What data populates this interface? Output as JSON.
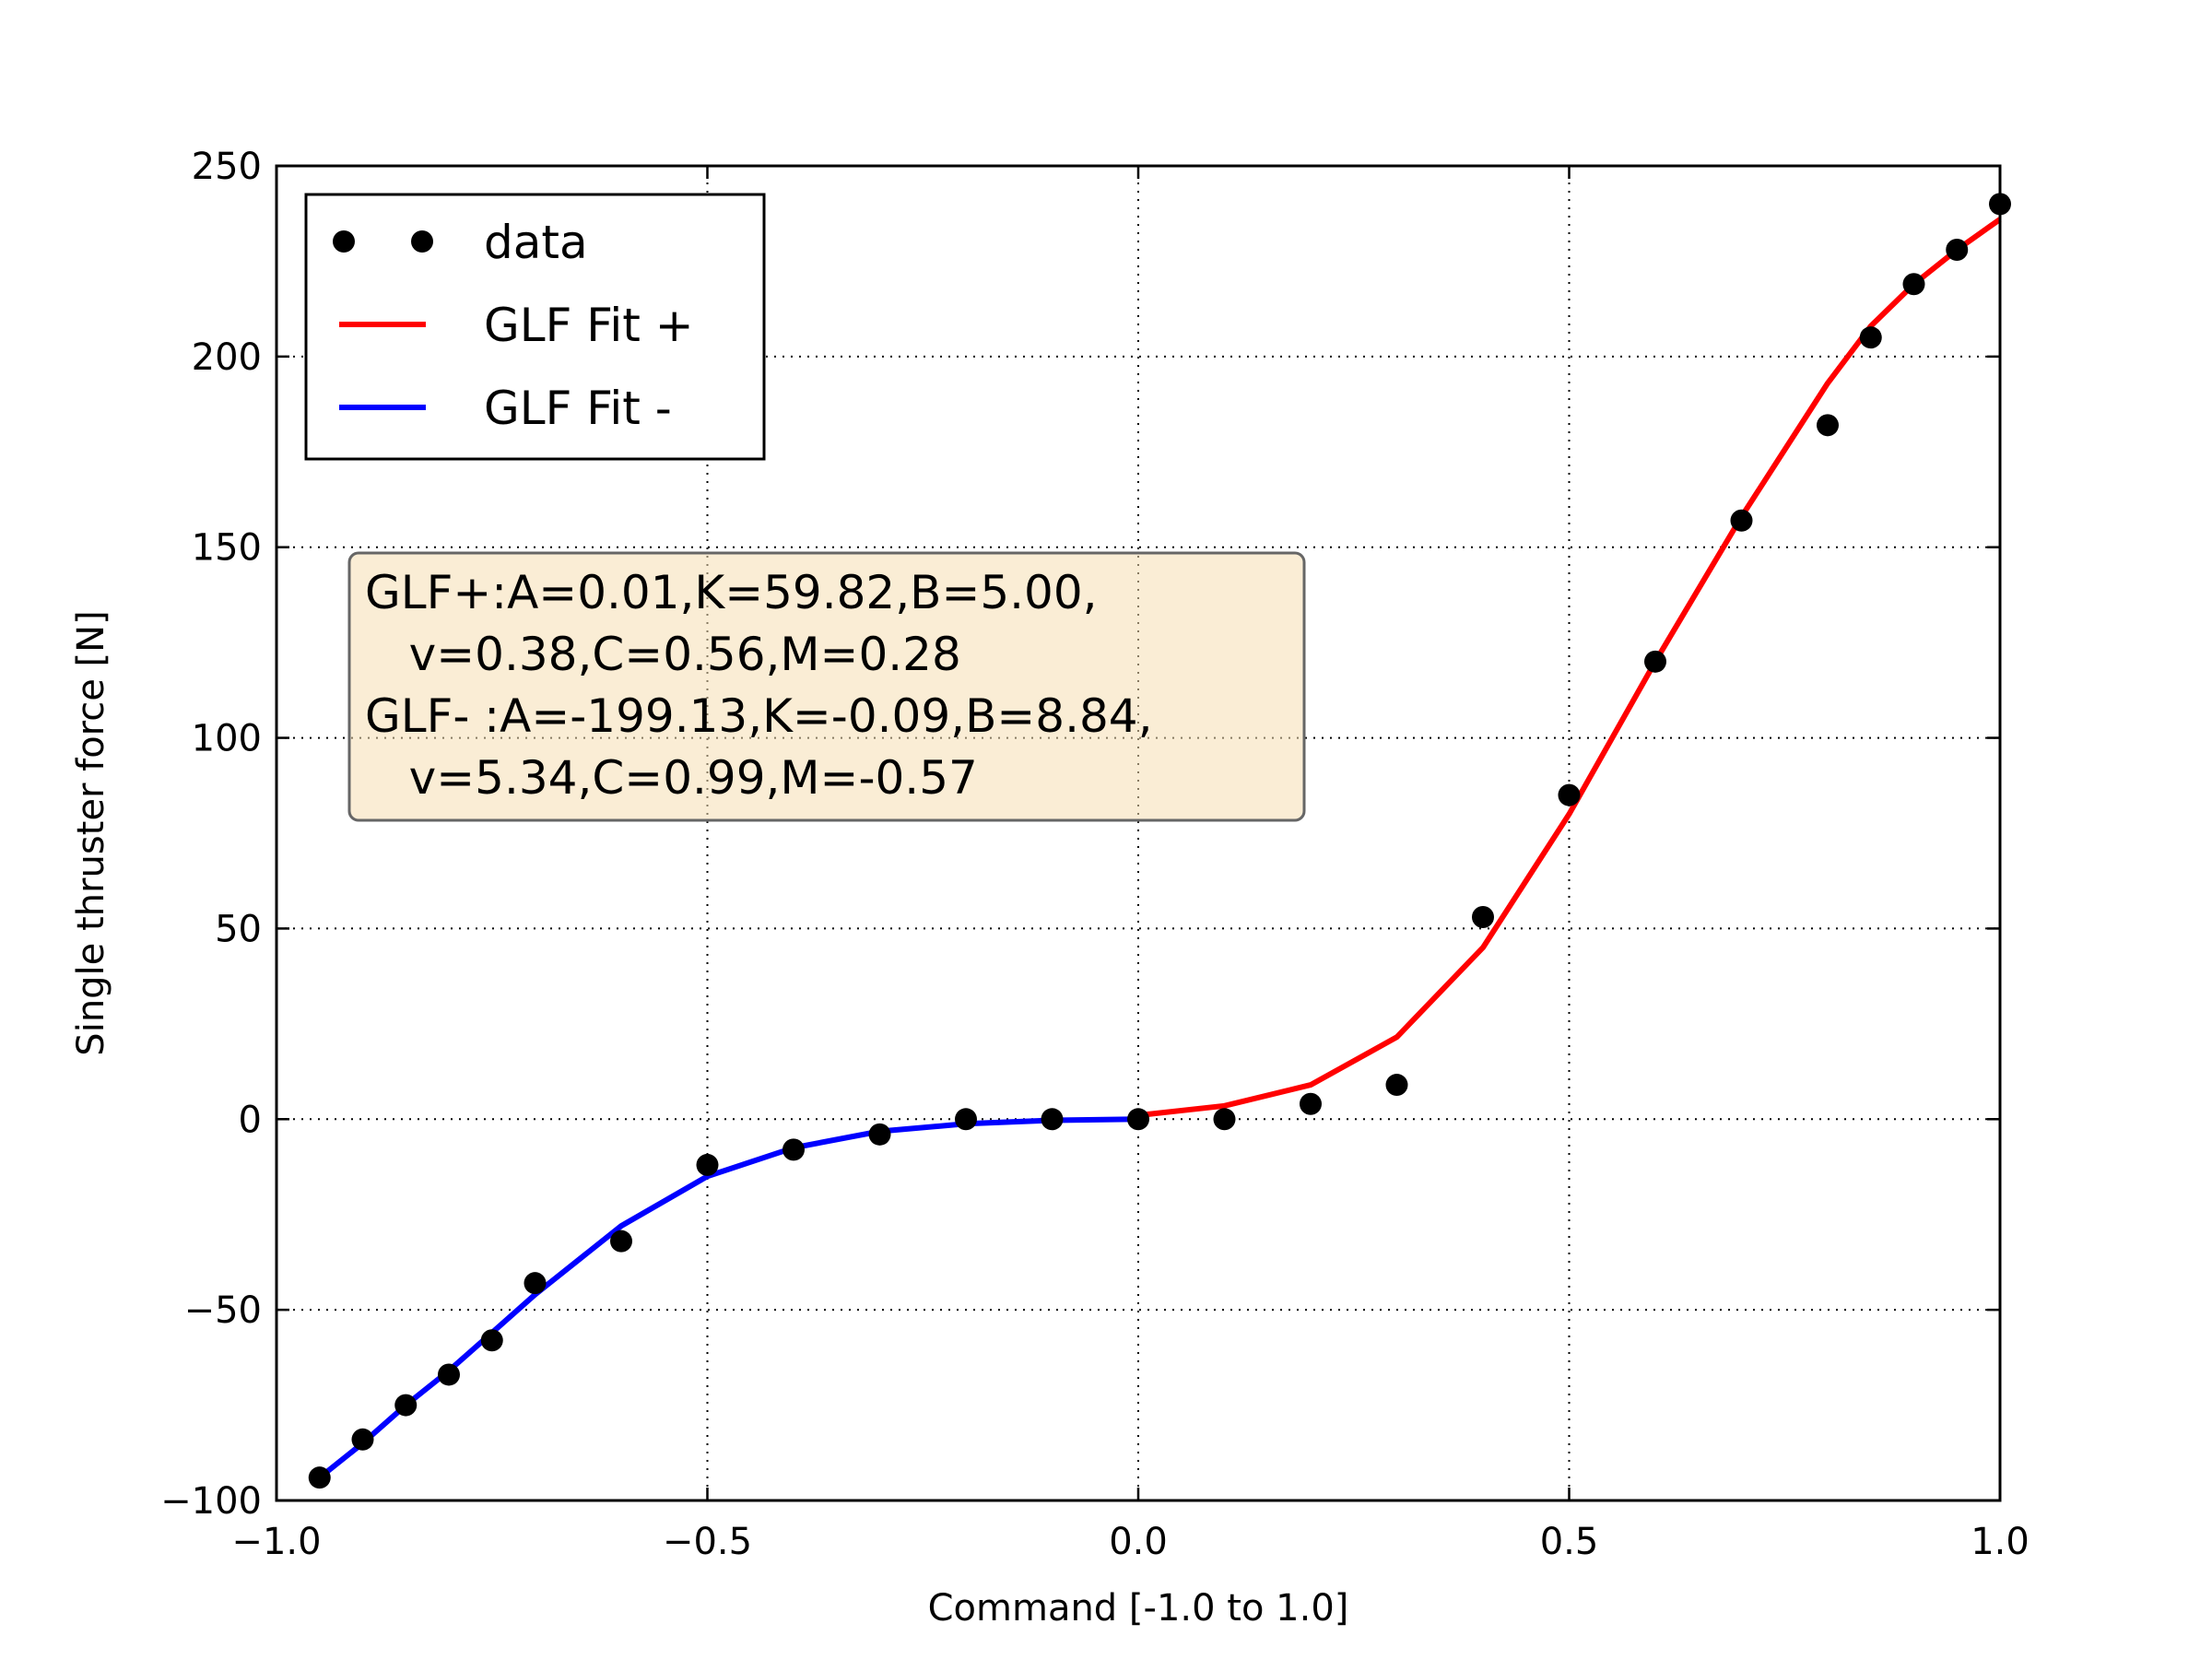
{
  "chart_data": {
    "type": "scatter",
    "title": "",
    "xlabel": "Command [-1.0 to 1.0]",
    "ylabel": "Single thruster force [N]",
    "xlim": [
      -1.0,
      1.0
    ],
    "ylim": [
      -100,
      250
    ],
    "xticks": [
      -1.0,
      -0.5,
      0.0,
      0.5,
      1.0
    ],
    "xtick_labels": [
      "−1.0",
      "−0.5",
      "0.0",
      "0.5",
      "1.0"
    ],
    "yticks": [
      -100,
      -50,
      0,
      50,
      100,
      150,
      200,
      250
    ],
    "ytick_labels": [
      "−100",
      "−50",
      "0",
      "50",
      "100",
      "150",
      "200",
      "250"
    ],
    "grid": true,
    "legend_position": "top-left",
    "series": [
      {
        "name": "data",
        "style": "markers",
        "color": "#000000",
        "x": [
          -0.95,
          -0.9,
          -0.85,
          -0.8,
          -0.75,
          -0.7,
          -0.6,
          -0.5,
          -0.4,
          -0.3,
          -0.2,
          -0.1,
          0.0,
          0.1,
          0.2,
          0.3,
          0.4,
          0.5,
          0.6,
          0.7,
          0.8,
          0.85,
          0.9,
          0.95,
          1.0
        ],
        "y": [
          -94,
          -84,
          -75,
          -67,
          -58,
          -43,
          -32,
          -12,
          -8,
          -4,
          0,
          0,
          0,
          0,
          4,
          9,
          53,
          85,
          120,
          157,
          182,
          205,
          219,
          228,
          240
        ]
      },
      {
        "name": "GLF Fit +",
        "style": "line",
        "color": "#ff0000",
        "x": [
          0.0,
          0.1,
          0.2,
          0.3,
          0.4,
          0.5,
          0.6,
          0.7,
          0.8,
          0.85,
          0.9,
          0.95,
          1.0
        ],
        "y": [
          1,
          3.5,
          9,
          21.5,
          45,
          80,
          120,
          158,
          193,
          208,
          219,
          228,
          236
        ]
      },
      {
        "name": "GLF Fit -",
        "style": "line",
        "color": "#0000ff",
        "x": [
          -0.95,
          -0.9,
          -0.85,
          -0.8,
          -0.75,
          -0.7,
          -0.6,
          -0.5,
          -0.4,
          -0.3,
          -0.2,
          -0.1,
          0.0
        ],
        "y": [
          -94,
          -85,
          -75,
          -66,
          -56,
          -46,
          -28,
          -15,
          -7.5,
          -3.2,
          -1.2,
          -0.3,
          0
        ]
      }
    ],
    "annotation": {
      "lines": [
        "GLF+:A=0.01,K=59.82,B=5.00,",
        "   v=0.38,C=0.56,M=0.28",
        "GLF- :A=-199.13,K=-0.09,B=8.84,",
        "   v=5.34,C=0.99,M=-0.57"
      ],
      "background": "#f5deb3",
      "border": "#666666"
    }
  }
}
